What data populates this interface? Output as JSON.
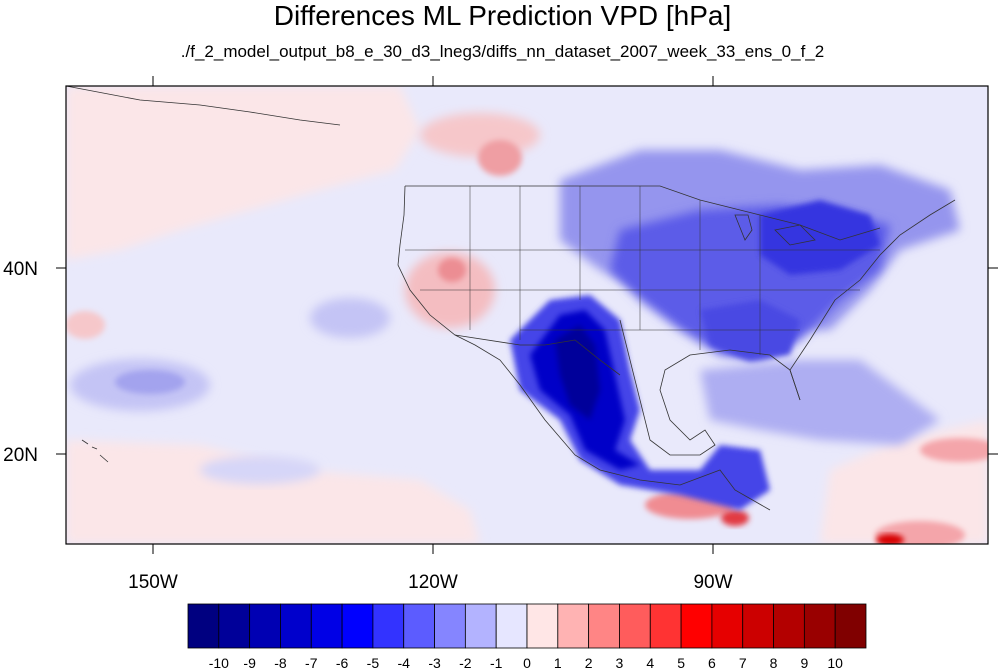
{
  "title": "Differences ML Prediction VPD [hPa]",
  "subtitle": "./f_2_model_output_b8_e_30_d3_lneg3/diffs_nn_dataset_2007_week_33_ens_0_f_2",
  "map": {
    "longitude_ticks": [
      "150W",
      "120W",
      "90W"
    ],
    "latitude_ticks": [
      "40N",
      "20N"
    ]
  },
  "colorbar": {
    "labels": [
      "-10",
      "-9",
      "-8",
      "-7",
      "-6",
      "-5",
      "-4",
      "-3",
      "-2",
      "-1",
      "0",
      "1",
      "2",
      "3",
      "4",
      "5",
      "6",
      "7",
      "8",
      "9",
      "10"
    ],
    "colors": [
      "#000080",
      "#000099",
      "#0000b3",
      "#0000cc",
      "#0000e6",
      "#0000ff",
      "#3333ff",
      "#5c5cff",
      "#8585ff",
      "#b3b3ff",
      "#e6e6ff",
      "#ffe6e6",
      "#ffb3b3",
      "#ff8585",
      "#ff5c5c",
      "#ff3333",
      "#ff0000",
      "#e60000",
      "#cc0000",
      "#b30000",
      "#990000",
      "#800000"
    ]
  }
}
